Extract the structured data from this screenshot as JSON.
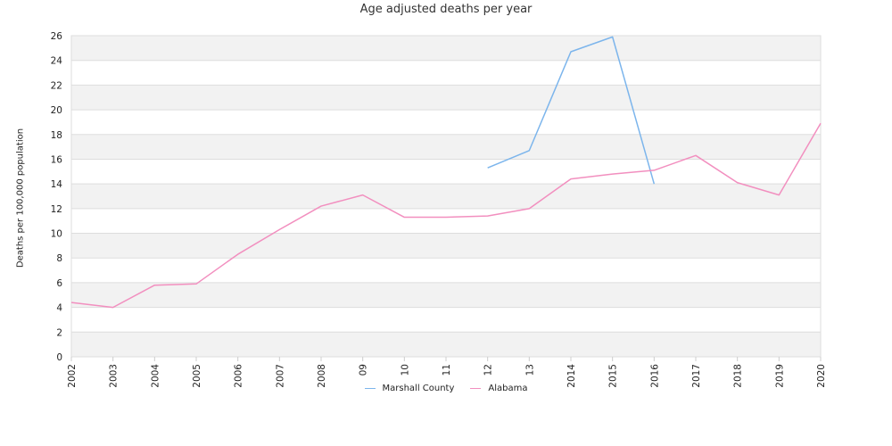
{
  "chart_data": {
    "type": "line",
    "title": "Age adjusted deaths per year",
    "ylabel": "Deaths per 100,000 population",
    "xlabel": "",
    "categories": [
      "2002",
      "2003",
      "2004",
      "2005",
      "2006",
      "2007",
      "2008",
      "09",
      "10",
      "11",
      "12",
      "13",
      "2014",
      "2015",
      "2016",
      "2017",
      "2018",
      "2019",
      "2020"
    ],
    "ylim": [
      0,
      26
    ],
    "yticks": [
      0,
      2,
      4,
      6,
      8,
      10,
      12,
      14,
      16,
      18,
      20,
      22,
      24,
      26
    ],
    "grid": true,
    "banded_background": true,
    "legend_position": "bottom-center",
    "series": [
      {
        "name": "Marshall County",
        "color": "#7cb5ec",
        "values": [
          null,
          null,
          null,
          null,
          null,
          null,
          null,
          null,
          null,
          null,
          15.3,
          16.7,
          24.7,
          25.9,
          14.0,
          null,
          null,
          null,
          null
        ]
      },
      {
        "name": "Alabama",
        "color": "#f28fbf",
        "values": [
          4.4,
          4.0,
          5.8,
          5.9,
          8.3,
          10.3,
          12.2,
          13.1,
          11.3,
          11.3,
          11.4,
          12.0,
          14.4,
          14.8,
          15.1,
          16.3,
          14.1,
          13.1,
          18.9
        ]
      }
    ]
  }
}
